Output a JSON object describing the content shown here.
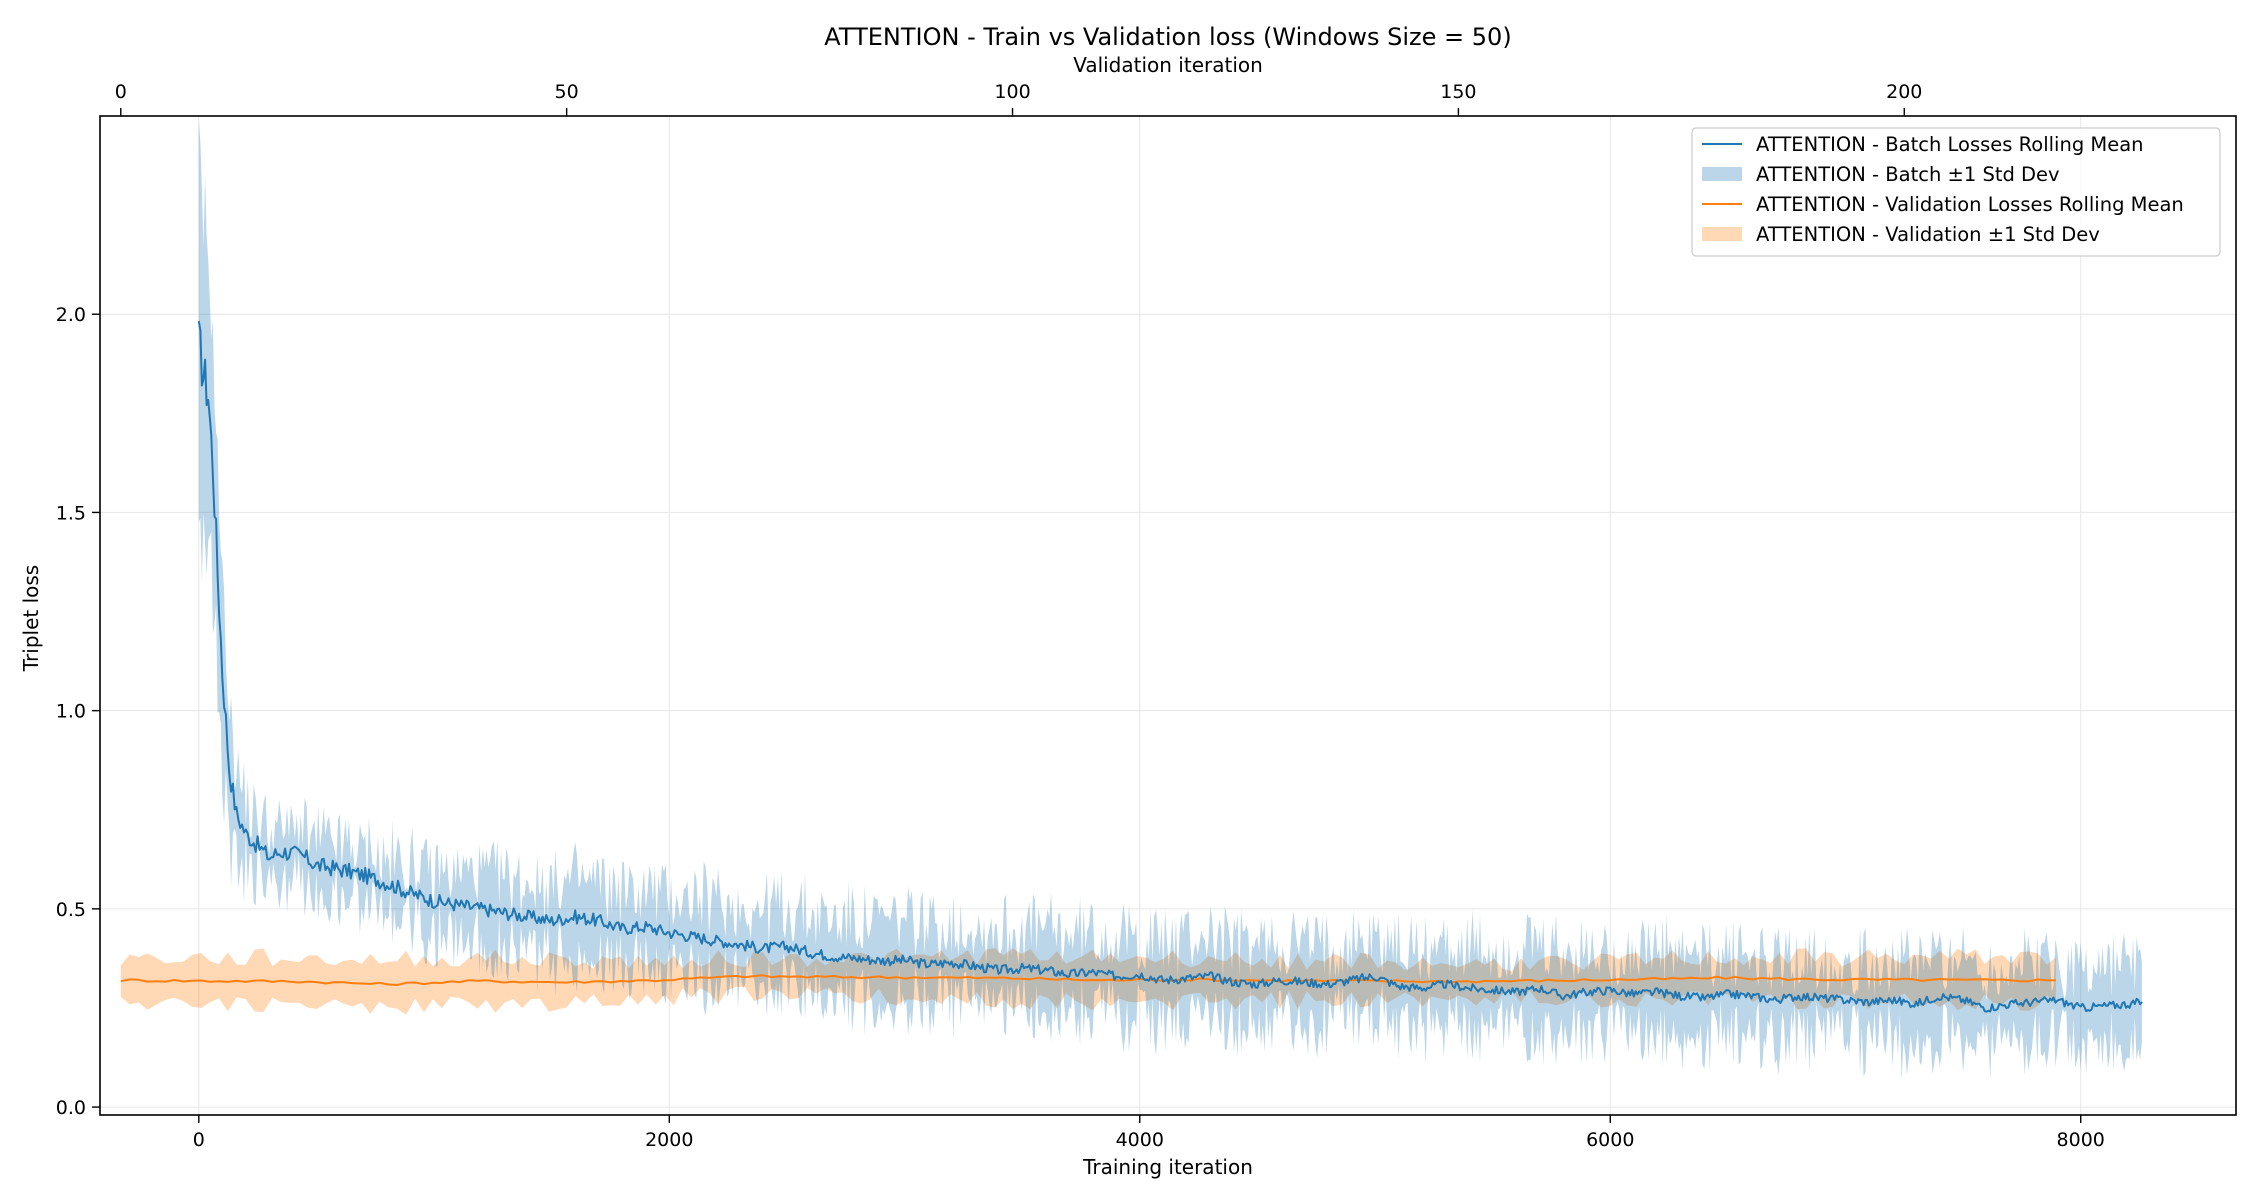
{
  "chart_data": {
    "type": "line",
    "title": "ATTENTION - Train vs Validation loss (Windows Size = 50)",
    "xlabel": "Training iteration",
    "x2label": "Validation iteration",
    "ylabel": "Triplet loss",
    "xlim": [
      -420,
      8660
    ],
    "x2lim": [
      -2.33,
      237.2
    ],
    "ylim": [
      -0.02,
      2.5
    ],
    "xticks": [
      0,
      2000,
      4000,
      6000,
      8000
    ],
    "x2ticks": [
      0,
      50,
      100,
      150,
      200
    ],
    "yticks": [
      "0.0",
      "0.5",
      "1.0",
      "1.5",
      "2.0"
    ],
    "grid": true,
    "legend_position": "top-right",
    "colors": {
      "batch": "#1f77b4",
      "batch_band": "#1f77b4",
      "validation": "#ff7f0e",
      "validation_band": "#ff7f0e",
      "grid": "#e6e6e6"
    },
    "series": [
      {
        "name": "ATTENTION - Batch Losses Rolling Mean",
        "band_name": "ATTENTION - Batch ±1 Std Dev",
        "axis": "bottom",
        "x": [
          0,
          20,
          40,
          60,
          80,
          100,
          130,
          160,
          200,
          250,
          300,
          350,
          400,
          450,
          500,
          600,
          700,
          800,
          900,
          1000,
          1100,
          1200,
          1300,
          1400,
          1500,
          1600,
          1700,
          1800,
          1900,
          2000,
          2100,
          2200,
          2300,
          2400,
          2500,
          2600,
          2700,
          2800,
          2900,
          3000,
          3100,
          3200,
          3300,
          3400,
          3500,
          3600,
          3700,
          3800,
          3900,
          4000,
          4100,
          4200,
          4300,
          4400,
          4500,
          4600,
          4700,
          4800,
          4900,
          5000,
          5100,
          5200,
          5300,
          5400,
          5500,
          5600,
          5700,
          5800,
          5900,
          6000,
          6100,
          6200,
          6300,
          6400,
          6500,
          6600,
          6700,
          6800,
          6900,
          7000,
          7100,
          7200,
          7300,
          7400,
          7500,
          7600,
          7700,
          7800,
          7900,
          8000,
          8100,
          8200,
          8260
        ],
        "mean": [
          1.93,
          1.85,
          1.8,
          1.62,
          1.35,
          1.1,
          0.85,
          0.74,
          0.69,
          0.66,
          0.63,
          0.645,
          0.64,
          0.63,
          0.61,
          0.6,
          0.585,
          0.565,
          0.54,
          0.52,
          0.51,
          0.5,
          0.49,
          0.48,
          0.47,
          0.48,
          0.47,
          0.45,
          0.455,
          0.44,
          0.43,
          0.42,
          0.41,
          0.4,
          0.405,
          0.39,
          0.38,
          0.375,
          0.37,
          0.37,
          0.36,
          0.365,
          0.355,
          0.345,
          0.35,
          0.345,
          0.335,
          0.34,
          0.33,
          0.335,
          0.32,
          0.325,
          0.33,
          0.315,
          0.31,
          0.32,
          0.315,
          0.31,
          0.32,
          0.33,
          0.305,
          0.3,
          0.31,
          0.3,
          0.295,
          0.29,
          0.3,
          0.28,
          0.29,
          0.295,
          0.285,
          0.29,
          0.28,
          0.275,
          0.285,
          0.28,
          0.27,
          0.28,
          0.275,
          0.27,
          0.265,
          0.27,
          0.26,
          0.28,
          0.27,
          0.25,
          0.26,
          0.265,
          0.27,
          0.25,
          0.255,
          0.26,
          0.265
        ],
        "std": [
          0.42,
          0.38,
          0.35,
          0.32,
          0.28,
          0.24,
          0.17,
          0.12,
          0.09,
          0.07,
          0.065,
          0.06,
          0.06,
          0.06,
          0.06,
          0.06,
          0.06,
          0.065,
          0.07,
          0.075,
          0.08,
          0.085,
          0.09,
          0.09,
          0.095,
          0.095,
          0.095,
          0.095,
          0.095,
          0.095,
          0.1,
          0.1,
          0.1,
          0.1,
          0.1,
          0.1,
          0.1,
          0.1,
          0.1,
          0.1,
          0.1,
          0.1,
          0.1,
          0.1,
          0.1,
          0.1,
          0.1,
          0.1,
          0.1,
          0.1,
          0.1,
          0.1,
          0.1,
          0.1,
          0.1,
          0.1,
          0.1,
          0.1,
          0.1,
          0.1,
          0.1,
          0.1,
          0.1,
          0.1,
          0.1,
          0.1,
          0.1,
          0.1,
          0.1,
          0.1,
          0.1,
          0.1,
          0.1,
          0.1,
          0.1,
          0.1,
          0.1,
          0.1,
          0.1,
          0.1,
          0.1,
          0.1,
          0.1,
          0.11,
          0.1,
          0.1,
          0.1,
          0.1,
          0.1,
          0.1,
          0.1,
          0.1,
          0.1
        ]
      },
      {
        "name": "ATTENTION - Validation Losses Rolling Mean",
        "band_name": "ATTENTION - Validation ±1 Std Dev",
        "axis": "top",
        "x": [
          0,
          10,
          20,
          30,
          40,
          50,
          60,
          70,
          80,
          90,
          100,
          110,
          120,
          130,
          140,
          150,
          160,
          170,
          180,
          190,
          200,
          210,
          217
        ],
        "mean": [
          0.32,
          0.318,
          0.317,
          0.31,
          0.318,
          0.315,
          0.32,
          0.33,
          0.328,
          0.327,
          0.325,
          0.32,
          0.322,
          0.319,
          0.318,
          0.317,
          0.319,
          0.322,
          0.326,
          0.322,
          0.321,
          0.32,
          0.32
        ],
        "std": [
          0.057,
          0.057,
          0.058,
          0.06,
          0.058,
          0.055,
          0.048,
          0.045,
          0.048,
          0.05,
          0.06,
          0.058,
          0.055,
          0.05,
          0.048,
          0.045,
          0.045,
          0.048,
          0.05,
          0.055,
          0.055,
          0.058,
          0.058
        ]
      }
    ]
  }
}
